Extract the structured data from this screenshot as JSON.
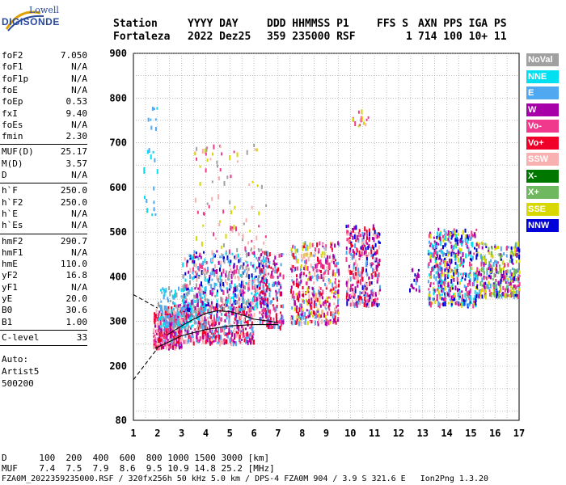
{
  "logo": {
    "line1": "Lowell",
    "line2": "DIGISONDE"
  },
  "header": {
    "labels": [
      "Station",
      "YYYY DAY",
      "DDD HHMMSS P1",
      "FFS S",
      "AXN PPS IGA PS"
    ],
    "values": [
      "Fortaleza",
      "2022 Dez25",
      "359 235000 RSF",
      "1",
      "714 100 10+ 11"
    ]
  },
  "params_group1": [
    {
      "name": "foF2",
      "value": "7.050"
    },
    {
      "name": "foF1",
      "value": "N/A"
    },
    {
      "name": "foF1p",
      "value": "N/A"
    },
    {
      "name": "foE",
      "value": "N/A"
    },
    {
      "name": "foEp",
      "value": "0.53"
    },
    {
      "name": "fxI",
      "value": "9.40"
    },
    {
      "name": "foEs",
      "value": "N/A"
    },
    {
      "name": "fmin",
      "value": "2.30"
    }
  ],
  "params_group2": [
    {
      "name": "MUF(D)",
      "value": "25.17"
    },
    {
      "name": "M(D)",
      "value": "3.57"
    },
    {
      "name": "D",
      "value": "N/A"
    }
  ],
  "params_group3": [
    {
      "name": "h`F",
      "value": "250.0"
    },
    {
      "name": "h`F2",
      "value": "250.0"
    },
    {
      "name": "h`E",
      "value": "N/A"
    },
    {
      "name": "h`Es",
      "value": "N/A"
    }
  ],
  "params_group4": [
    {
      "name": "hmF2",
      "value": "290.7"
    },
    {
      "name": "hmF1",
      "value": "N/A"
    },
    {
      "name": "hmE",
      "value": "110.0"
    },
    {
      "name": "yF2",
      "value": "16.8"
    },
    {
      "name": "yF1",
      "value": "N/A"
    },
    {
      "name": "yE",
      "value": "20.0"
    },
    {
      "name": "B0",
      "value": "30.6"
    },
    {
      "name": "B1",
      "value": "1.00"
    }
  ],
  "clevel": {
    "name": "C-level",
    "value": "33"
  },
  "auto": {
    "line1": "Auto:",
    "line2": "Artist5",
    "line3": "500200"
  },
  "legend": [
    {
      "label": "NoVal",
      "color": "#a0a0a0"
    },
    {
      "label": "NNE",
      "color": "#00e0f0"
    },
    {
      "label": "E",
      "color": "#50a8f0"
    },
    {
      "label": "W",
      "color": "#a800a8"
    },
    {
      "label": "Vo-",
      "color": "#f0388c"
    },
    {
      "label": "Vo+",
      "color": "#f00028"
    },
    {
      "label": "SSW",
      "color": "#f8b0b0"
    },
    {
      "label": "X-",
      "color": "#007800"
    },
    {
      "label": "X+",
      "color": "#70b860"
    },
    {
      "label": "SSE",
      "color": "#d8d800"
    },
    {
      "label": "NNW",
      "color": "#0000d8"
    }
  ],
  "footer": {
    "d_row": "D      100  200  400  600  800 1000 1500 3000 [km]",
    "muf_row": "MUF    7.4  7.5  7.9  8.6  9.5 10.9 14.8 25.2 [MHz]",
    "info_row": "FZA0M_2022359235000.RSF / 320fx256h 50 kHz 5.0 km / DPS-4 FZA0M 904 / 3.9 S 321.6 E   Ion2Png 1.3.20"
  },
  "chart_data": {
    "type": "scatter",
    "xlim": [
      1,
      17
    ],
    "ylim": [
      80,
      900
    ],
    "xticks": [
      "1",
      "2",
      "3",
      "4",
      "5",
      "6",
      "7",
      "8",
      "9",
      "10",
      "11",
      "12",
      "13",
      "14",
      "15",
      "16",
      "17"
    ],
    "yticks": [
      "80",
      "200",
      "300",
      "400",
      "500",
      "600",
      "700",
      "800",
      "900"
    ],
    "grid": true,
    "clusters": [
      {
        "xr": [
          1.8,
          3.0
        ],
        "yr": [
          245,
          330
        ],
        "n": 260,
        "colors": [
          "#f00028",
          "#f0388c",
          "#a800a8",
          "#f8b0b0"
        ]
      },
      {
        "xr": [
          2.2,
          6.0
        ],
        "yr": [
          255,
          340
        ],
        "n": 520,
        "colors": [
          "#f00028",
          "#f0388c",
          "#a800a8",
          "#f8b0b0",
          "#50a8f0"
        ]
      },
      {
        "xr": [
          2.0,
          4.0
        ],
        "yr": [
          290,
          380
        ],
        "n": 160,
        "colors": [
          "#50a8f0",
          "#00e0f0",
          "#a0a0a0"
        ]
      },
      {
        "xr": [
          3.0,
          6.6
        ],
        "yr": [
          330,
          460
        ],
        "n": 560,
        "colors": [
          "#50a8f0",
          "#00e0f0",
          "#a0a0a0",
          "#f0388c",
          "#a800a8",
          "#f8b0b0",
          "#0000d8"
        ]
      },
      {
        "xr": [
          3.5,
          6.5
        ],
        "yr": [
          460,
          700
        ],
        "n": 90,
        "colors": [
          "#f8b0b0",
          "#d8d800",
          "#f0388c",
          "#a0a0a0"
        ]
      },
      {
        "xr": [
          6.2,
          7.2
        ],
        "yr": [
          290,
          460
        ],
        "n": 170,
        "colors": [
          "#f00028",
          "#f0388c",
          "#a800a8",
          "#50a8f0"
        ]
      },
      {
        "xr": [
          7.5,
          9.5
        ],
        "yr": [
          300,
          480
        ],
        "n": 420,
        "colors": [
          "#f00028",
          "#f0388c",
          "#a800a8",
          "#f8b0b0",
          "#d8d800",
          "#50a8f0"
        ]
      },
      {
        "xr": [
          9.8,
          11.2
        ],
        "yr": [
          340,
          520
        ],
        "n": 320,
        "colors": [
          "#f00028",
          "#f0388c",
          "#a800a8",
          "#0000d8",
          "#50a8f0",
          "#f8b0b0"
        ]
      },
      {
        "xr": [
          10,
          10.8
        ],
        "yr": [
          740,
          790
        ],
        "n": 14,
        "colors": [
          "#f0388c",
          "#f8b0b0",
          "#d8d800"
        ]
      },
      {
        "xr": [
          12.4,
          13.0
        ],
        "yr": [
          370,
          420
        ],
        "n": 20,
        "colors": [
          "#50a8f0",
          "#0000d8",
          "#a800a8"
        ]
      },
      {
        "xr": [
          13.2,
          15.2
        ],
        "yr": [
          340,
          510
        ],
        "n": 480,
        "colors": [
          "#0000d8",
          "#a800a8",
          "#50a8f0",
          "#00e0f0",
          "#f0388c",
          "#d8d800"
        ]
      },
      {
        "xr": [
          15.2,
          17.0
        ],
        "yr": [
          360,
          480
        ],
        "n": 320,
        "colors": [
          "#50a8f0",
          "#a800a8",
          "#f0388c",
          "#0000d8",
          "#d8d800",
          "#70b860"
        ]
      },
      {
        "xr": [
          1.4,
          2.0
        ],
        "yr": [
          540,
          800
        ],
        "n": 24,
        "colors": [
          "#00e0f0",
          "#50a8f0"
        ]
      }
    ],
    "traces": [
      {
        "name": "ordinary-fit",
        "points": [
          [
            1.9,
            240
          ],
          [
            2.5,
            255
          ],
          [
            3.0,
            268
          ],
          [
            4.0,
            282
          ],
          [
            5.0,
            290
          ],
          [
            6.0,
            293
          ],
          [
            7.0,
            293
          ]
        ],
        "style": "solid"
      },
      {
        "name": "extraordinary-fit",
        "points": [
          [
            2.4,
            270
          ],
          [
            3.0,
            290
          ],
          [
            3.5,
            305
          ],
          [
            4.0,
            318
          ],
          [
            4.5,
            324
          ],
          [
            5.0,
            322
          ],
          [
            5.5,
            315
          ],
          [
            6.0,
            305
          ],
          [
            7.0,
            298
          ]
        ],
        "style": "solid"
      },
      {
        "name": "lower-extrapolation",
        "points": [
          [
            1.0,
            170
          ],
          [
            2.0,
            240
          ]
        ],
        "style": "dashed"
      },
      {
        "name": "upper-extrapolation",
        "points": [
          [
            1.0,
            360
          ],
          [
            2.0,
            330
          ]
        ],
        "style": "dashed"
      }
    ]
  }
}
